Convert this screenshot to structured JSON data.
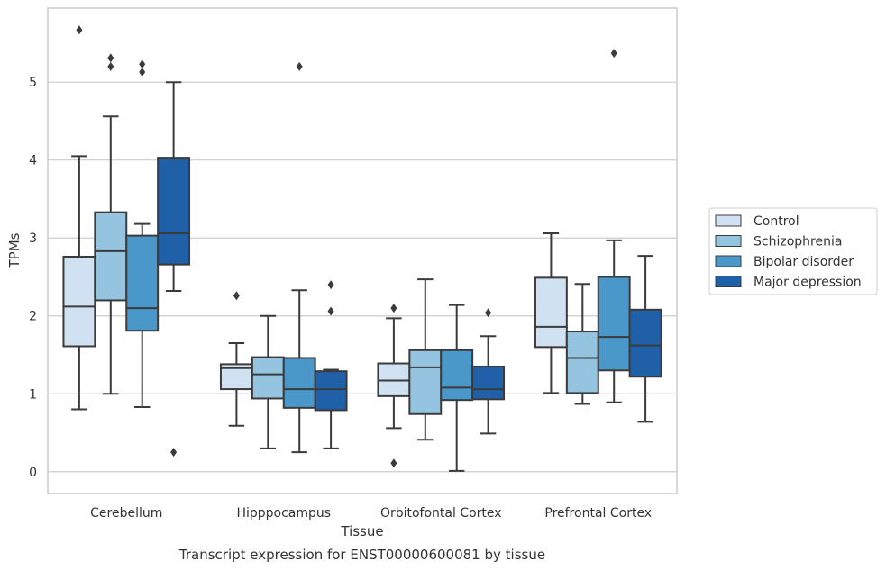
{
  "chart_data": {
    "type": "box",
    "xlabel": "Tissue",
    "ylabel": "TPMs",
    "caption": "Transcript expression for ENST00000600081 by tissue",
    "ylim": [
      -0.28,
      5.95
    ],
    "yticks": [
      0,
      1,
      2,
      3,
      4,
      5
    ],
    "grid": "horizontal",
    "legend_position": "right",
    "categories": [
      "Cerebellum",
      "Hipppocampus",
      "Orbitofontal Cortex",
      "Prefrontal Cortex"
    ],
    "series": [
      {
        "name": "Control",
        "color": "#d0e1f2",
        "boxes": [
          {
            "whisker_low": 0.8,
            "q1": 1.61,
            "median": 2.12,
            "q3": 2.76,
            "whisker_high": 4.05,
            "outliers": [
              5.67
            ]
          },
          {
            "whisker_low": 0.59,
            "q1": 1.06,
            "median": 1.33,
            "q3": 1.38,
            "whisker_high": 1.65,
            "outliers": [
              2.26
            ]
          },
          {
            "whisker_low": 0.56,
            "q1": 0.97,
            "median": 1.17,
            "q3": 1.39,
            "whisker_high": 1.97,
            "outliers": [
              2.1,
              0.11
            ]
          },
          {
            "whisker_low": 1.01,
            "q1": 1.6,
            "median": 1.86,
            "q3": 2.49,
            "whisker_high": 3.06,
            "outliers": []
          }
        ]
      },
      {
        "name": "Schizophrenia",
        "color": "#94c4df",
        "boxes": [
          {
            "whisker_low": 1.0,
            "q1": 2.2,
            "median": 2.83,
            "q3": 3.33,
            "whisker_high": 4.56,
            "outliers": [
              5.31,
              5.2
            ]
          },
          {
            "whisker_low": 0.3,
            "q1": 0.94,
            "median": 1.25,
            "q3": 1.47,
            "whisker_high": 2.0,
            "outliers": []
          },
          {
            "whisker_low": 0.41,
            "q1": 0.74,
            "median": 1.34,
            "q3": 1.56,
            "whisker_high": 2.47,
            "outliers": []
          },
          {
            "whisker_low": 0.87,
            "q1": 1.01,
            "median": 1.46,
            "q3": 1.8,
            "whisker_high": 2.41,
            "outliers": []
          }
        ]
      },
      {
        "name": "Bipolar disorder",
        "color": "#4a98c9",
        "boxes": [
          {
            "whisker_low": 0.83,
            "q1": 1.81,
            "median": 2.1,
            "q3": 3.03,
            "whisker_high": 3.18,
            "outliers": [
              5.23,
              5.13
            ]
          },
          {
            "whisker_low": 0.25,
            "q1": 0.82,
            "median": 1.06,
            "q3": 1.46,
            "whisker_high": 2.33,
            "outliers": [
              5.2
            ]
          },
          {
            "whisker_low": 0.01,
            "q1": 0.92,
            "median": 1.08,
            "q3": 1.56,
            "whisker_high": 2.14,
            "outliers": []
          },
          {
            "whisker_low": 0.89,
            "q1": 1.3,
            "median": 1.73,
            "q3": 2.5,
            "whisker_high": 2.97,
            "outliers": [
              5.37
            ]
          }
        ]
      },
      {
        "name": "Major depression",
        "color": "#2060a8",
        "boxes": [
          {
            "whisker_low": 2.32,
            "q1": 2.66,
            "median": 3.06,
            "q3": 4.03,
            "whisker_high": 5.0,
            "outliers": [
              0.25
            ]
          },
          {
            "whisker_low": 0.3,
            "q1": 0.79,
            "median": 1.06,
            "q3": 1.29,
            "whisker_high": 1.31,
            "outliers": [
              2.4,
              2.06
            ]
          },
          {
            "whisker_low": 0.49,
            "q1": 0.93,
            "median": 1.06,
            "q3": 1.35,
            "whisker_high": 1.74,
            "outliers": [
              2.04
            ]
          },
          {
            "whisker_low": 0.64,
            "q1": 1.22,
            "median": 1.62,
            "q3": 2.08,
            "whisker_high": 2.77,
            "outliers": []
          }
        ]
      }
    ]
  }
}
